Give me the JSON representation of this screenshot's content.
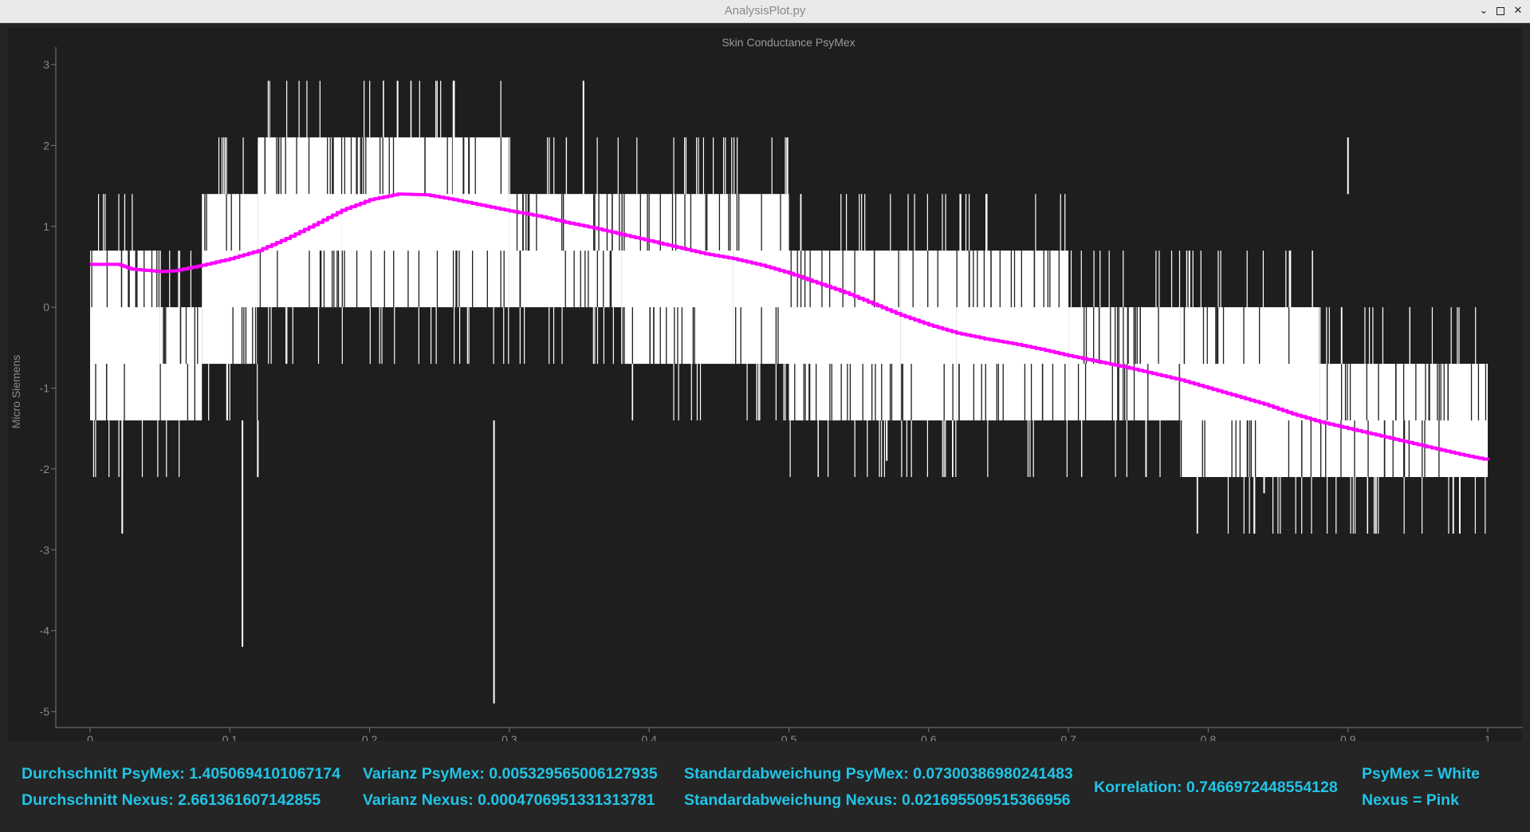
{
  "window": {
    "title": "AnalysisPlot.py",
    "minimize_icon": "chevron-down-icon",
    "maximize_icon": "square-icon",
    "close_icon": "close-icon"
  },
  "colors": {
    "psymex": "#ffffff",
    "nexus": "#ff00ff",
    "stats_text": "#21c4e6",
    "plot_bg": "#1e1e1e",
    "axis": "#7a7a7a"
  },
  "chart_data": {
    "type": "line",
    "title": "Skin Conductance PsyMex",
    "xlabel": "",
    "ylabel": "Micro Siemens",
    "xlim": [
      0,
      1
    ],
    "ylim": [
      -5,
      3
    ],
    "xticks": [
      "0",
      "0.1",
      "0.2",
      "0.3",
      "0.4",
      "0.5",
      "0.6",
      "0.7",
      "0.8",
      "0.9",
      "1"
    ],
    "yticks": [
      "3",
      "2",
      "1",
      "0",
      "-1",
      "-2",
      "-3",
      "-4",
      "-5"
    ],
    "grid": false,
    "series": [
      {
        "name": "PsyMex",
        "color": "#ffffff",
        "style": "dense noisy signal switching between quantized levels",
        "levels": [
          -2.1,
          -1.4,
          -0.7,
          0.0,
          0.7,
          1.4,
          2.1
        ],
        "band_segments": [
          {
            "x": [
              0.0,
              0.05
            ],
            "low": -1.4,
            "high": 0.7
          },
          {
            "x": [
              0.05,
              0.08
            ],
            "low": -1.4,
            "high": 0.0
          },
          {
            "x": [
              0.08,
              0.12
            ],
            "low": -0.7,
            "high": 1.4
          },
          {
            "x": [
              0.12,
              0.18
            ],
            "low": 0.0,
            "high": 2.1
          },
          {
            "x": [
              0.18,
              0.3
            ],
            "low": 0.0,
            "high": 2.1
          },
          {
            "x": [
              0.3,
              0.38
            ],
            "low": 0.0,
            "high": 1.4
          },
          {
            "x": [
              0.38,
              0.46
            ],
            "low": -0.7,
            "high": 1.4
          },
          {
            "x": [
              0.46,
              0.5
            ],
            "low": -0.7,
            "high": 1.4
          },
          {
            "x": [
              0.5,
              0.58
            ],
            "low": -1.4,
            "high": 0.7
          },
          {
            "x": [
              0.58,
              0.62
            ],
            "low": -1.4,
            "high": 0.7
          },
          {
            "x": [
              0.62,
              0.7
            ],
            "low": -1.4,
            "high": 0.7
          },
          {
            "x": [
              0.7,
              0.78
            ],
            "low": -1.4,
            "high": 0.0
          },
          {
            "x": [
              0.78,
              0.88
            ],
            "low": -2.1,
            "high": 0.0
          },
          {
            "x": [
              0.88,
              1.0
            ],
            "low": -2.1,
            "high": -0.7
          }
        ],
        "spikes": [
          {
            "x": 0.023,
            "y": -2.8
          },
          {
            "x": 0.109,
            "y": -4.2
          },
          {
            "x": 0.12,
            "y": -2.1
          },
          {
            "x": 0.22,
            "y": 2.8
          },
          {
            "x": 0.26,
            "y": 2.8
          },
          {
            "x": 0.289,
            "y": -4.9
          },
          {
            "x": 0.353,
            "y": 2.8
          },
          {
            "x": 0.57,
            "y": -1.9
          },
          {
            "x": 0.84,
            "y": -2.3
          },
          {
            "x": 0.9,
            "y": 2.1
          },
          {
            "x": 0.92,
            "y": -2.8
          },
          {
            "x": 0.98,
            "y": -2.8
          },
          {
            "x": 0.99,
            "y": -2.1
          }
        ]
      },
      {
        "name": "Nexus",
        "color": "#ff00ff",
        "x": [
          0.0,
          0.02,
          0.03,
          0.05,
          0.06,
          0.08,
          0.1,
          0.12,
          0.14,
          0.16,
          0.18,
          0.2,
          0.22,
          0.24,
          0.26,
          0.28,
          0.3,
          0.32,
          0.34,
          0.36,
          0.38,
          0.4,
          0.42,
          0.44,
          0.46,
          0.48,
          0.5,
          0.52,
          0.54,
          0.56,
          0.58,
          0.6,
          0.62,
          0.64,
          0.66,
          0.68,
          0.7,
          0.72,
          0.74,
          0.76,
          0.78,
          0.8,
          0.82,
          0.84,
          0.86,
          0.88,
          0.9,
          0.92,
          0.94,
          0.96,
          0.98,
          1.0
        ],
        "values": [
          0.53,
          0.53,
          0.47,
          0.44,
          0.45,
          0.52,
          0.6,
          0.7,
          0.85,
          1.02,
          1.2,
          1.33,
          1.4,
          1.39,
          1.33,
          1.26,
          1.19,
          1.13,
          1.05,
          0.98,
          0.9,
          0.82,
          0.74,
          0.66,
          0.6,
          0.52,
          0.42,
          0.3,
          0.18,
          0.04,
          -0.1,
          -0.22,
          -0.32,
          -0.39,
          -0.45,
          -0.52,
          -0.6,
          -0.67,
          -0.74,
          -0.82,
          -0.9,
          -1.0,
          -1.1,
          -1.2,
          -1.32,
          -1.42,
          -1.5,
          -1.58,
          -1.66,
          -1.74,
          -1.82,
          -1.89
        ]
      }
    ]
  },
  "stats": {
    "mean_psymex": "Durchschnitt PsyMex: 1.4050694101067174",
    "mean_nexus": "Durchschnitt Nexus: 2.661361607142855",
    "var_psymex": "Varianz PsyMex: 0.005329565006127935",
    "var_nexus": "Varianz Nexus: 0.0004706951331313781",
    "std_psymex": "Standardabweichung PsyMex: 0.07300386980241483",
    "std_nexus": "Standardabweichung Nexus: 0.021695509515366956",
    "correlation": "Korrelation: 0.7466972448554128",
    "legend_psymex": "PsyMex = White",
    "legend_nexus": "Nexus = Pink"
  }
}
